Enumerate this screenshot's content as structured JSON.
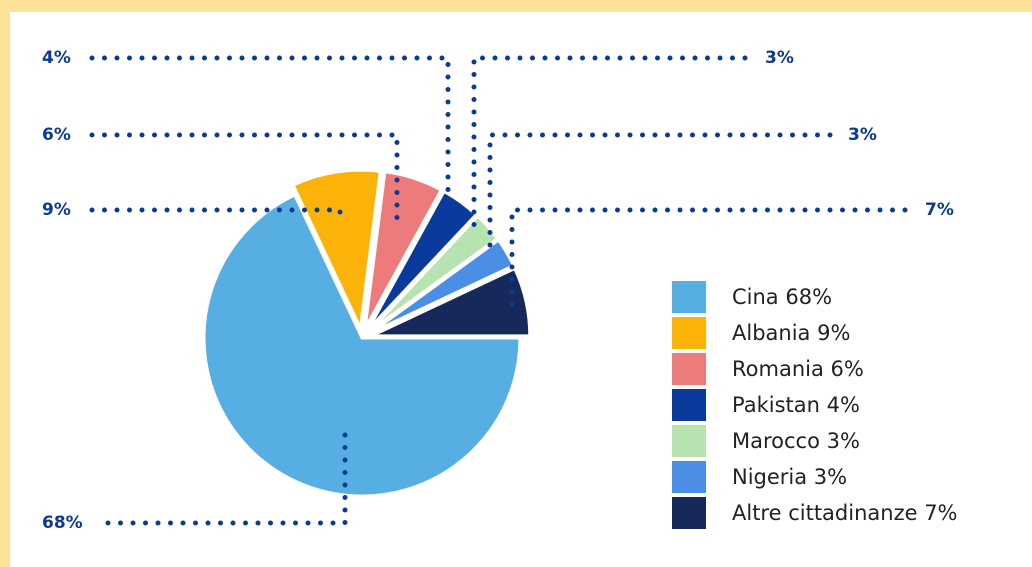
{
  "chart_data": {
    "type": "pie",
    "labels": [
      "Cina 68%",
      "Albania 9%",
      "Romania 6%",
      "Pakistan 4%",
      "Marocco 3%",
      "Nigeria 3%",
      "Altre cittadinanze 7%"
    ],
    "values": [
      68,
      9,
      6,
      4,
      3,
      3,
      7
    ],
    "value_labels": [
      "68%",
      "9%",
      "6%",
      "4%",
      "3%",
      "3%",
      "7%"
    ],
    "colors": [
      "#56aee2",
      "#fbb30a",
      "#ee7b7b",
      "#0a3a9c",
      "#b6e3b0",
      "#4a8ee6",
      "#16295a"
    ],
    "legend": "right"
  }
}
